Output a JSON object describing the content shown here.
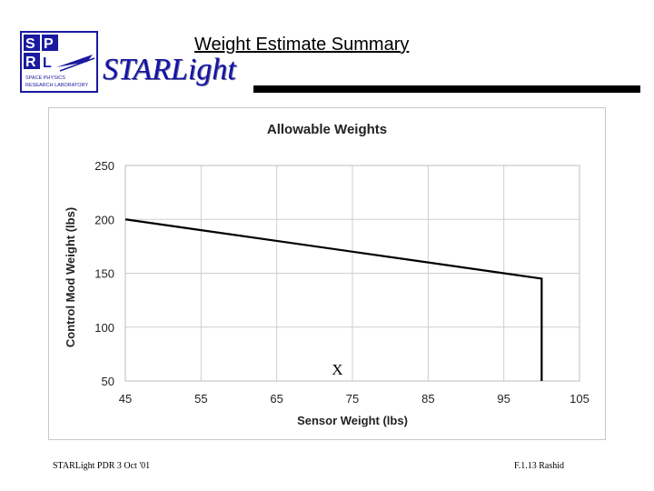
{
  "slide": {
    "title": "Weight Estimate Summary",
    "brand": "STARLight",
    "logo_text": "SPRL",
    "logo_caption_1": "SPACE PHYSICS",
    "logo_caption_2": "RESEARCH LABORATORY",
    "footer_left": "STARLight PDR 3 Oct '01",
    "footer_right": "F.1.13 Rashid",
    "brand_color": "#1414a8"
  },
  "chart_data": {
    "type": "line",
    "title": "Allowable Weights",
    "xlabel": "Sensor Weight (lbs)",
    "ylabel": "Control Mod Weight (lbs)",
    "xlim": [
      45,
      105
    ],
    "ylim": [
      50,
      250
    ],
    "xticks": [
      45,
      55,
      65,
      75,
      85,
      95,
      105
    ],
    "yticks": [
      50,
      100,
      150,
      200,
      250
    ],
    "grid": true,
    "series": [
      {
        "x": [
          45,
          55,
          65,
          75,
          85,
          95,
          100,
          100
        ],
        "y": [
          200,
          190,
          180,
          170,
          160,
          150,
          145,
          50
        ]
      }
    ],
    "annotations": [
      {
        "text": "X",
        "x": 73,
        "y": 60
      }
    ],
    "line_color": "#000000",
    "grid_color": "#cfcfcf"
  }
}
